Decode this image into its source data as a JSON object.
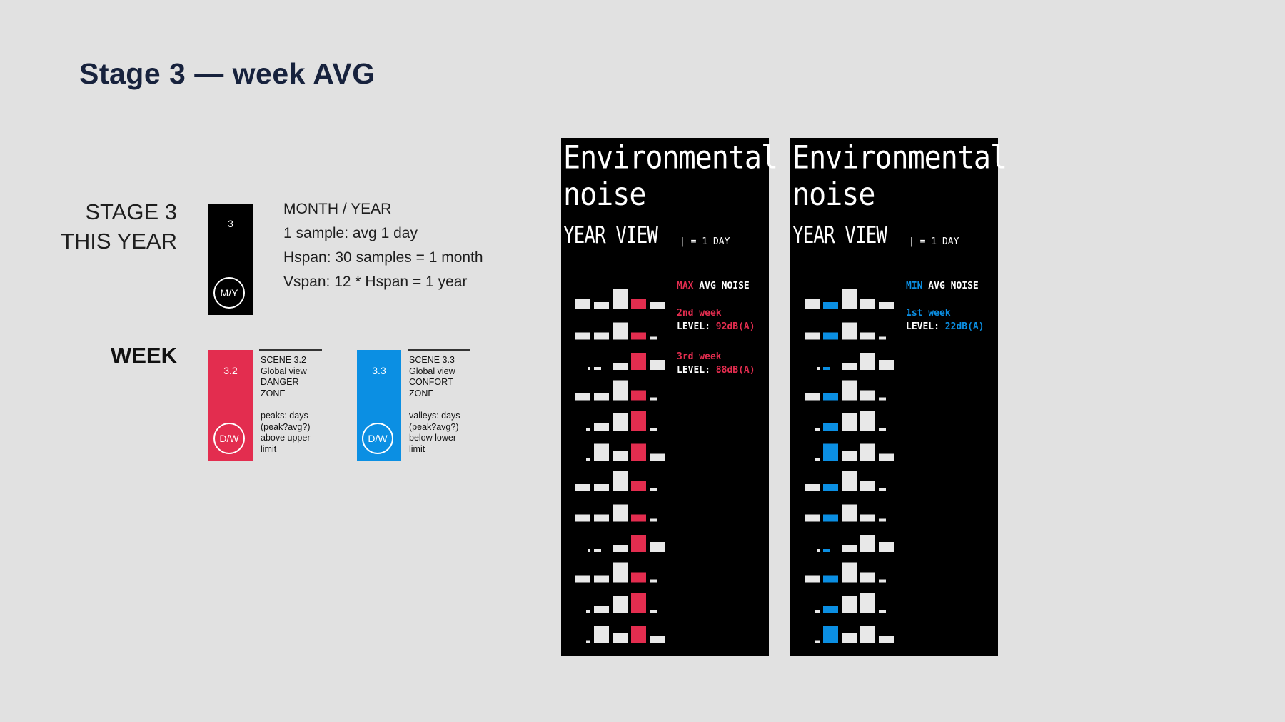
{
  "title": "Stage 3 — week AVG",
  "stage": {
    "label_line1": "STAGE 3",
    "label_line2": "THIS YEAR",
    "card_number": "3",
    "card_badge": "M/Y",
    "info_heading": "MONTH / YEAR",
    "info_line1": "1 sample: avg 1 day",
    "info_line2": "Hspan: 30 samples = 1 month",
    "info_line3": "Vspan: 12 * Hspan = 1 year"
  },
  "week": {
    "label": "WEEK",
    "scenes": [
      {
        "number": "3.2",
        "badge": "D/W",
        "color": "#e32d4f",
        "lines": [
          "SCENE 3.2",
          "Global view",
          "DANGER",
          "ZONE"
        ],
        "notes": [
          "peaks: days",
          "(peak?avg?)",
          "above upper",
          "limit"
        ]
      },
      {
        "number": "3.3",
        "badge": "D/W",
        "color": "#0b8fe3",
        "lines": [
          "SCENE 3.3",
          "Global view",
          "CONFORT",
          "ZONE"
        ],
        "notes": [
          "valleys: days",
          "(peak?avg?)",
          "below lower",
          "limit"
        ]
      }
    ]
  },
  "panels": [
    {
      "title_line1": "Environmental",
      "title_line2": "noise",
      "view": "YEAR VIEW",
      "legend": "| = 1 DAY",
      "highlight_color": "#e32d4f",
      "highlight_position": 3,
      "annotation": {
        "heading_accent": "MAX",
        "heading_rest": " AVG NOISE",
        "entries": [
          {
            "week": "2nd week",
            "level_label": "LEVEL: ",
            "level_value": "92dB(A)"
          },
          {
            "week": "3rd week",
            "level_label": "LEVEL: ",
            "level_value": "88dB(A)"
          }
        ]
      }
    },
    {
      "title_line1": "Environmental",
      "title_line2": "noise",
      "view": "YEAR VIEW",
      "legend": "| = 1 DAY",
      "highlight_color": "#0b8fe3",
      "highlight_position": 1,
      "annotation": {
        "heading_accent": "MIN",
        "heading_rest": " AVG NOISE",
        "entries": [
          {
            "week": "1st week",
            "level_label": "LEVEL: ",
            "level_value": "22dB(A)"
          }
        ]
      }
    }
  ],
  "bar_rows": [
    [
      2,
      1,
      5,
      2,
      1
    ],
    [
      1,
      1,
      4,
      1,
      0.5
    ],
    [
      0.2,
      0.5,
      1,
      4,
      2
    ],
    [
      1,
      1,
      5,
      2,
      0.5
    ],
    [
      0.5,
      1,
      4,
      5,
      0.5
    ],
    [
      0.5,
      4,
      2,
      4,
      1
    ],
    [
      1,
      1,
      5,
      2,
      0.5
    ],
    [
      1,
      1,
      4,
      1,
      0.5
    ],
    [
      0.2,
      0.5,
      1,
      4,
      2
    ],
    [
      1,
      1,
      5,
      2,
      0.5
    ],
    [
      0.5,
      1,
      4,
      5,
      0.5
    ],
    [
      0.5,
      4,
      2,
      4,
      1
    ]
  ]
}
